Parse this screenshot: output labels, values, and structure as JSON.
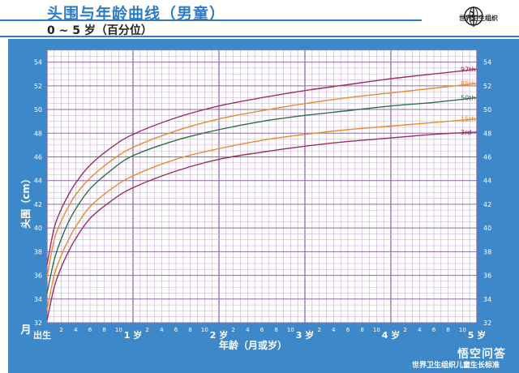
{
  "header": {
    "title": "头围与年龄曲线（男童）",
    "subtitle": "0 ~ 5 岁（百分位）",
    "org": "世界卫生组织"
  },
  "footer": {
    "note": "世界卫生组织儿童生长标准",
    "watermark": "悟空问答"
  },
  "colors": {
    "frame": "#3d88c9",
    "grid_minor": "#c8a6d4",
    "grid_major": "#8e6aa8",
    "p97": "#9b2d63",
    "p85": "#e68a2e",
    "p50": "#2e6f4a",
    "p15": "#e68a2e",
    "p3": "#9b2d63"
  },
  "chart_data": {
    "type": "line",
    "xlabel": "年龄（月或岁）",
    "ylabel": "头围（cm）",
    "x_unit_label": "月",
    "ylim": [
      32,
      55
    ],
    "xlim": [
      0,
      60
    ],
    "yticks": [
      32,
      34,
      36,
      38,
      40,
      42,
      44,
      46,
      48,
      50,
      52,
      54
    ],
    "x_major_labels": [
      {
        "month": 0,
        "label": "出生"
      },
      {
        "month": 12,
        "label": "1 岁"
      },
      {
        "month": 24,
        "label": "2 岁"
      },
      {
        "month": 36,
        "label": "3 岁"
      },
      {
        "month": 48,
        "label": "4 岁"
      },
      {
        "month": 60,
        "label": "5 岁"
      }
    ],
    "x_minor_labels": [
      "2",
      "4",
      "6",
      "8",
      "10"
    ],
    "grid": true,
    "x": [
      0,
      1,
      2,
      3,
      4,
      6,
      9,
      12,
      18,
      24,
      30,
      36,
      42,
      48,
      54,
      60
    ],
    "series": [
      {
        "name": "97th",
        "color": "#9b2d63",
        "values": [
          36.9,
          40.0,
          41.6,
          42.8,
          43.8,
          45.3,
          46.8,
          47.9,
          49.3,
          50.3,
          51.0,
          51.6,
          52.1,
          52.6,
          53.0,
          53.4
        ]
      },
      {
        "name": "85th",
        "color": "#e68a2e",
        "values": [
          35.9,
          39.0,
          40.6,
          41.8,
          42.8,
          44.2,
          45.7,
          46.8,
          48.2,
          49.2,
          49.9,
          50.5,
          51.0,
          51.4,
          51.8,
          52.2
        ]
      },
      {
        "name": "50th",
        "color": "#2e6f4a",
        "values": [
          34.5,
          37.3,
          39.1,
          40.5,
          41.6,
          43.3,
          44.9,
          46.1,
          47.4,
          48.3,
          49.0,
          49.5,
          49.9,
          50.3,
          50.6,
          51.0
        ]
      },
      {
        "name": "15th",
        "color": "#e68a2e",
        "values": [
          33.1,
          36.0,
          37.7,
          39.0,
          40.1,
          41.8,
          43.3,
          44.4,
          45.8,
          46.7,
          47.4,
          47.9,
          48.3,
          48.6,
          48.9,
          49.2
        ]
      },
      {
        "name": "3rd",
        "color": "#9b2d63",
        "values": [
          32.2,
          35.0,
          36.7,
          38.0,
          39.1,
          40.8,
          42.3,
          43.4,
          44.8,
          45.8,
          46.4,
          46.9,
          47.3,
          47.6,
          47.9,
          48.1
        ]
      }
    ]
  }
}
